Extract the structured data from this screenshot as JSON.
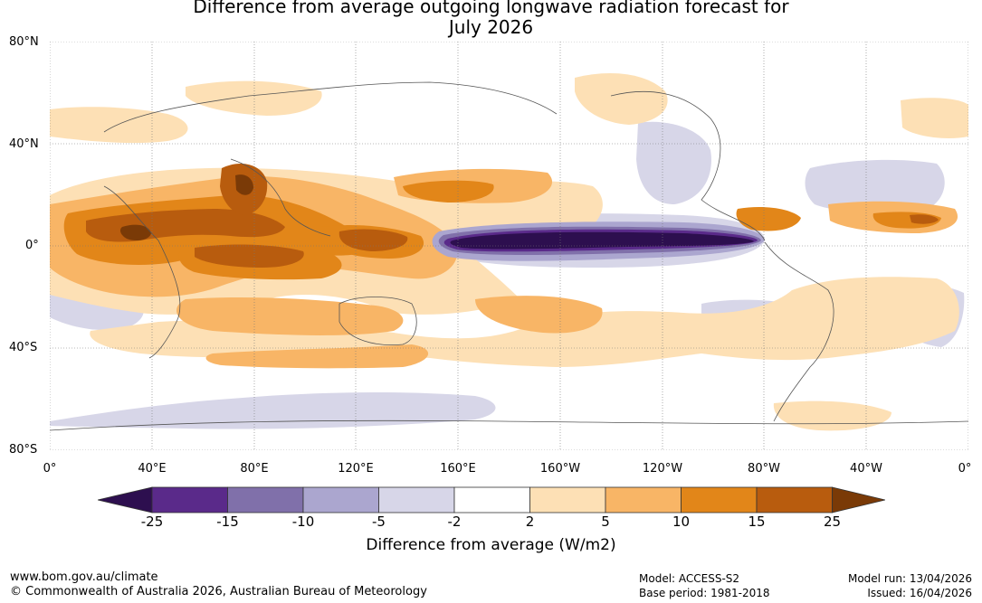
{
  "title": {
    "line1": "Difference from average outgoing longwave radiation forecast for",
    "line2": "July 2026"
  },
  "lat_labels": [
    "80°N",
    "40°N",
    "0°",
    "40°S",
    "80°S"
  ],
  "lon_labels": [
    "0°",
    "40°E",
    "80°E",
    "120°E",
    "160°E",
    "160°W",
    "120°W",
    "80°W",
    "40°W",
    "0°"
  ],
  "colorbar": {
    "ticks": [
      "-25",
      "-15",
      "-10",
      "-5",
      "-2",
      "2",
      "5",
      "10",
      "15",
      "25"
    ],
    "colors": [
      "#2d0f4f",
      "#5a2a8a",
      "#8070aa",
      "#aba6cf",
      "#d7d6e8",
      "#ffffff",
      "#fde0b5",
      "#f8b566",
      "#e28619",
      "#b85c0e",
      "#7a3a07"
    ],
    "label": "Difference from average (W/m2)"
  },
  "footer": {
    "website": "www.bom.gov.au/climate",
    "copyright": "© Commonwealth of Australia 2026, Australian Bureau of Meteorology",
    "model": "Model: ACCESS-S2",
    "base_period": "Base period: 1981-2018",
    "model_run": "Model run: 13/04/2026",
    "issued": "Issued: 16/04/2026"
  }
}
